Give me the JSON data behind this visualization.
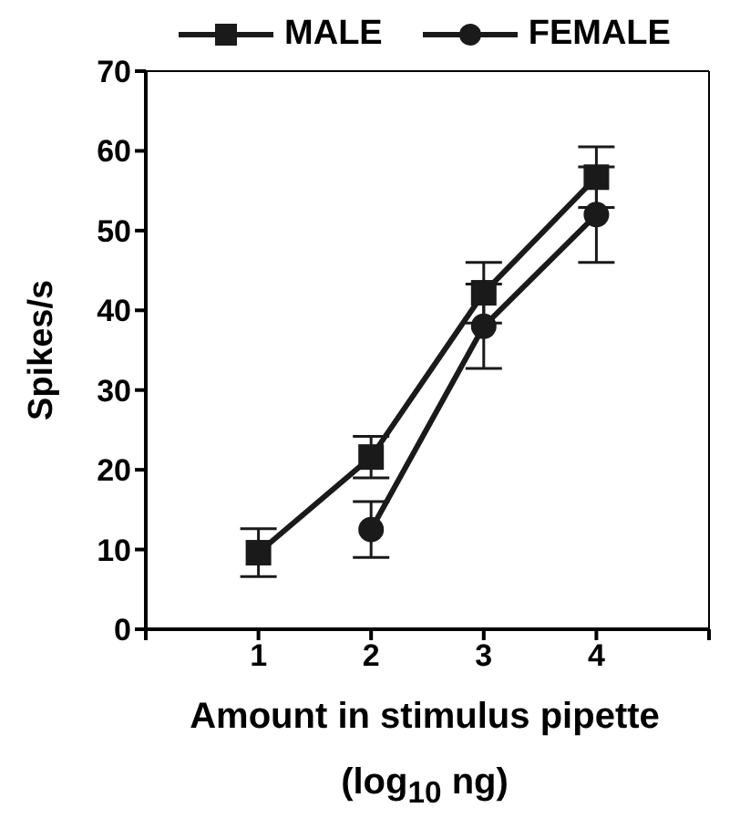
{
  "chart_data": {
    "type": "line",
    "xlabel": "Amount in stimulus pipette (log$_{10}$ ng)",
    "ylabel": "Spikes/s",
    "x": [
      1,
      2,
      3,
      4
    ],
    "series": [
      {
        "name": "MALE",
        "color": "#1a1a1a",
        "marker": "square",
        "values": [
          9.6,
          21.6,
          42.2,
          56.7
        ],
        "errors": [
          3,
          2.6,
          3.8,
          3.8
        ]
      },
      {
        "name": "FEMALE",
        "color": "#1a1a1a",
        "marker": "circle",
        "values": [
          null,
          12.5,
          38,
          52
        ],
        "errors": [
          null,
          3.5,
          5.3,
          6
        ]
      }
    ],
    "xlim": [
      0,
      5
    ],
    "xticks": [
      {
        "value": 0,
        "label": null
      },
      1,
      2,
      3,
      4,
      {
        "value": 5,
        "label": null
      }
    ],
    "ylim": [
      0,
      70
    ],
    "yticks": [
      0,
      10,
      20,
      30,
      40,
      50,
      60,
      70
    ],
    "grid": false,
    "legend": "top",
    "line_style": "solid"
  }
}
